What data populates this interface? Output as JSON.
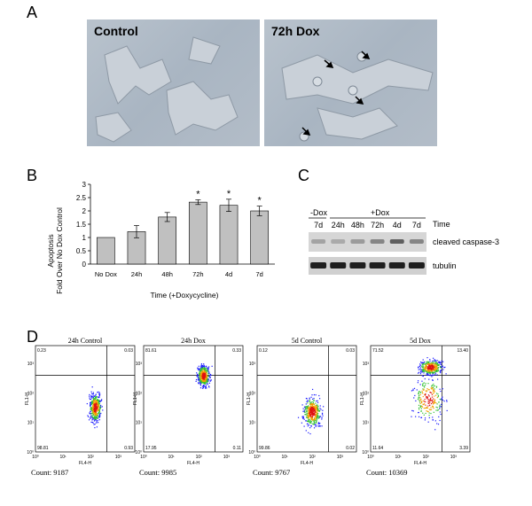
{
  "panels": {
    "A": {
      "letter": "A",
      "images": [
        {
          "label": "Control"
        },
        {
          "label": "72h Dox"
        }
      ]
    },
    "B": {
      "letter": "B"
    },
    "C": {
      "letter": "C",
      "group_minus": "-Dox",
      "group_plus": "+Dox",
      "time_label": "Time",
      "lanes": [
        "7d",
        "24h",
        "48h",
        "72h",
        "4d",
        "7d"
      ],
      "rows": [
        "cleaved caspase-3",
        "tubulin"
      ],
      "band_intensity": {
        "cleaved caspase-3": [
          0.25,
          0.2,
          0.3,
          0.45,
          0.7,
          0.45
        ],
        "tubulin": [
          1,
          1,
          1,
          1,
          1,
          1
        ]
      }
    },
    "D": {
      "letter": "D",
      "plots": [
        {
          "title": "24h Control",
          "count": "Count: 9187",
          "q": [
            "0.23",
            "0.03",
            "98.81",
            "0.93"
          ]
        },
        {
          "title": "24h Dox",
          "count": "Count: 9985",
          "q": [
            "81.61",
            "0.33",
            "17.95",
            "0.11"
          ]
        },
        {
          "title": "5d Control",
          "count": "Count: 9767",
          "q": [
            "0.12",
            "0.03",
            "99.86",
            "0.02"
          ]
        },
        {
          "title": "5d Dox",
          "count": "Count: 10369",
          "q": [
            "71.52",
            "13.40",
            "11.64",
            "3.39"
          ]
        }
      ],
      "xlabel": "FL4-H",
      "ylabel": "FL1-H",
      "ticks": [
        "10⁰",
        "10¹",
        "10²",
        "10³"
      ]
    }
  },
  "chart_data": {
    "type": "bar",
    "categories": [
      "No Dox",
      "24h",
      "48h",
      "72h",
      "4d",
      "7d"
    ],
    "values": [
      1.0,
      1.22,
      1.77,
      2.33,
      2.21,
      2.0
    ],
    "errors": [
      0,
      0.23,
      0.17,
      0.09,
      0.23,
      0.18
    ],
    "significant": [
      false,
      false,
      false,
      true,
      true,
      true
    ],
    "ylim": [
      0,
      3
    ],
    "yticks": [
      "0",
      "0.5",
      "1",
      "1.5",
      "2",
      "2.5",
      "3"
    ],
    "ylabel_line1": "Apoptosis",
    "ylabel_line2": "Fold Over No Dox Control",
    "xlabel": "Time (+Doxycycline)",
    "bar_color": "#c0c0c0"
  }
}
